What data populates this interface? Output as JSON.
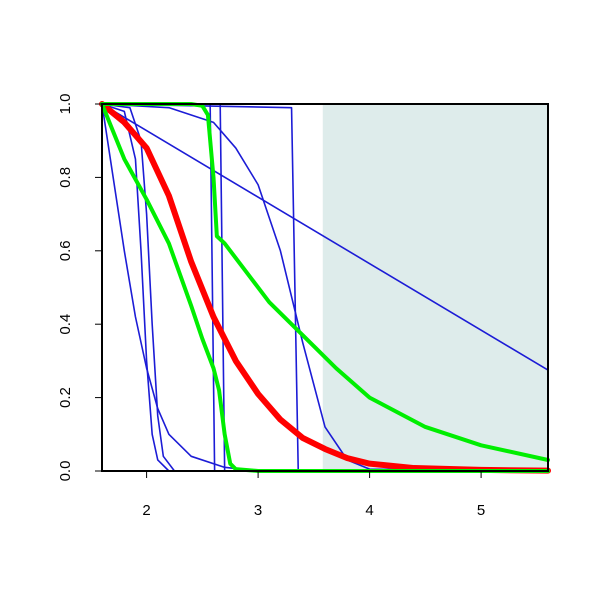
{
  "chart_data": {
    "type": "line",
    "xlim": [
      1.6,
      5.6
    ],
    "ylim": [
      0,
      1
    ],
    "xticks": [
      2,
      3,
      4,
      5
    ],
    "yticks": [
      {
        "value": 0,
        "label": "0.0"
      },
      {
        "value": 0.2,
        "label": "0.2"
      },
      {
        "value": 0.4,
        "label": "0.4"
      },
      {
        "value": 0.6,
        "label": "0.6"
      },
      {
        "value": 0.8,
        "label": "0.8"
      },
      {
        "value": 1,
        "label": "1.0"
      }
    ],
    "highlight_x": [
      3.58,
      5.6
    ],
    "highlight_color": "#deeceb",
    "series": [
      {
        "color": "#1c1cd6",
        "width": 1.6,
        "x": [
          1.6,
          5.6
        ],
        "values": [
          1,
          0.275
        ]
      },
      {
        "color": "#1c1cd6",
        "width": 1.6,
        "x": [
          1.6,
          1.7,
          1.8,
          1.9,
          2.0,
          2.1,
          2.2,
          2.4,
          2.7,
          3.0,
          5.6
        ],
        "values": [
          1,
          0.8,
          0.6,
          0.42,
          0.28,
          0.17,
          0.1,
          0.04,
          0.01,
          0,
          0
        ]
      },
      {
        "color": "#1c1cd6",
        "width": 1.6,
        "x": [
          1.6,
          1.8,
          1.9,
          1.95,
          2.0,
          2.05,
          2.1,
          2.2,
          5.6
        ],
        "values": [
          1,
          0.98,
          0.85,
          0.6,
          0.3,
          0.1,
          0.03,
          0,
          0
        ]
      },
      {
        "color": "#1c1cd6",
        "width": 1.6,
        "x": [
          1.6,
          1.85,
          1.95,
          2.0,
          2.05,
          2.1,
          2.15,
          2.25,
          5.6
        ],
        "values": [
          1,
          0.99,
          0.9,
          0.7,
          0.4,
          0.15,
          0.04,
          0,
          0
        ]
      },
      {
        "color": "#1c1cd6",
        "width": 1.6,
        "x": [
          1.6,
          2.57,
          2.59,
          2.61,
          5.6
        ],
        "values": [
          1,
          1,
          0.5,
          0,
          0
        ]
      },
      {
        "color": "#1c1cd6",
        "width": 1.6,
        "x": [
          1.6,
          2.66,
          2.68,
          2.7,
          5.6
        ],
        "values": [
          1,
          1,
          0.5,
          0,
          0
        ]
      },
      {
        "color": "#1c1cd6",
        "width": 1.6,
        "x": [
          1.6,
          3.3,
          3.33,
          3.36,
          5.6
        ],
        "values": [
          1,
          0.99,
          0.5,
          0,
          0
        ]
      },
      {
        "color": "#1c1cd6",
        "width": 1.6,
        "x": [
          1.6,
          2.2,
          2.6,
          2.8,
          3.0,
          3.2,
          3.4,
          3.6,
          3.8,
          4.0,
          5.6
        ],
        "values": [
          1,
          0.99,
          0.95,
          0.88,
          0.78,
          0.6,
          0.35,
          0.12,
          0.03,
          0.005,
          0
        ]
      },
      {
        "color": "#ff0000",
        "width": 6,
        "x": [
          1.6,
          1.8,
          2.0,
          2.2,
          2.4,
          2.6,
          2.8,
          3.0,
          3.2,
          3.4,
          3.6,
          3.8,
          4.0,
          4.4,
          5.0,
          5.6
        ],
        "values": [
          1,
          0.95,
          0.88,
          0.75,
          0.57,
          0.42,
          0.3,
          0.21,
          0.14,
          0.09,
          0.06,
          0.035,
          0.02,
          0.008,
          0.003,
          0.001
        ]
      },
      {
        "color": "#00ee00",
        "width": 4,
        "x": [
          1.6,
          1.8,
          2.0,
          2.2,
          2.4,
          2.5,
          2.6,
          2.65,
          2.7,
          2.75,
          2.8,
          3.0,
          5.6
        ],
        "values": [
          1,
          0.85,
          0.74,
          0.62,
          0.45,
          0.36,
          0.28,
          0.22,
          0.1,
          0.02,
          0.005,
          0,
          0
        ]
      },
      {
        "color": "#00ee00",
        "width": 4,
        "x": [
          1.6,
          2.0,
          2.4,
          2.5,
          2.55,
          2.6,
          2.63,
          2.7,
          2.9,
          3.1,
          3.3,
          3.5,
          3.7,
          4.0,
          4.5,
          5.0,
          5.6
        ],
        "values": [
          1,
          1,
          1,
          0.995,
          0.97,
          0.8,
          0.64,
          0.62,
          0.54,
          0.46,
          0.4,
          0.34,
          0.28,
          0.2,
          0.12,
          0.07,
          0.03
        ]
      }
    ]
  }
}
